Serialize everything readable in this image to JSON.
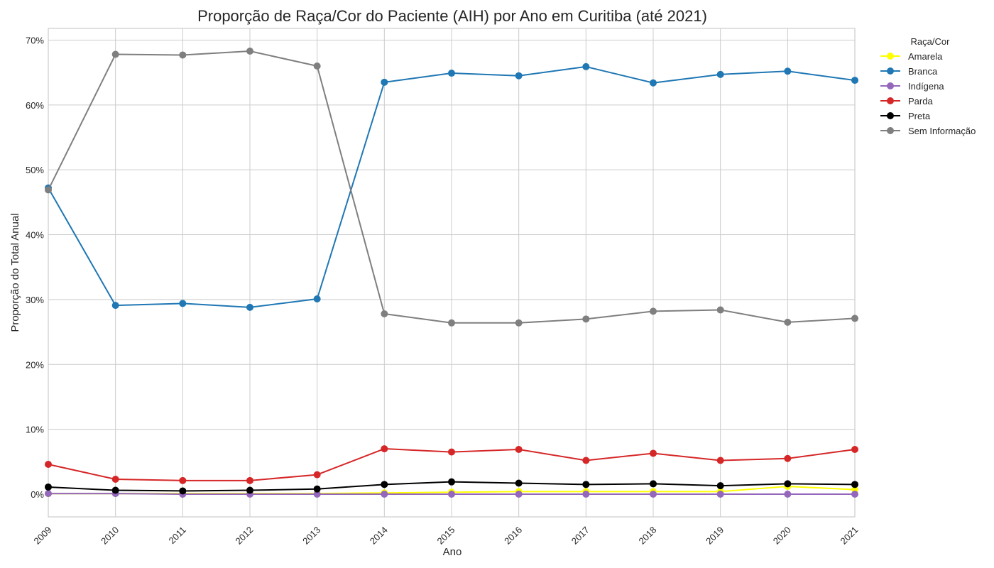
{
  "chart_data": {
    "type": "line",
    "title": "Proporção de Raça/Cor do Paciente (AIH) por Ano em Curitiba (até 2021)",
    "xlabel": "Ano",
    "ylabel": "Proporção do Total Anual",
    "x": [
      "2009",
      "2010",
      "2011",
      "2012",
      "2013",
      "2014",
      "2015",
      "2016",
      "2017",
      "2018",
      "2019",
      "2020",
      "2021"
    ],
    "y_ticks": [
      "0%",
      "10%",
      "20%",
      "30%",
      "40%",
      "50%",
      "60%",
      "70%"
    ],
    "ylim": [
      -3.5,
      71.8
    ],
    "grid": true,
    "legend": {
      "title": "Raça/Cor",
      "placement": "outside-top-right"
    },
    "series": [
      {
        "name": "Amarela",
        "color": "#ffff00",
        "values": [
          0.1,
          0.1,
          0.1,
          0.1,
          0.1,
          0.2,
          0.3,
          0.4,
          0.4,
          0.4,
          0.4,
          1.2,
          0.7
        ]
      },
      {
        "name": "Branca",
        "color": "#1f77b4",
        "values": [
          47.2,
          29.1,
          29.4,
          28.8,
          30.1,
          63.5,
          64.9,
          64.5,
          65.9,
          63.4,
          64.7,
          65.2,
          63.8
        ]
      },
      {
        "name": "Indígena",
        "color": "#9467bd",
        "values": [
          0.1,
          0.1,
          0.0,
          0.0,
          0.0,
          0.0,
          0.0,
          0.0,
          0.0,
          0.0,
          0.0,
          0.0,
          0.0
        ]
      },
      {
        "name": "Parda",
        "color": "#d62728",
        "values": [
          4.6,
          2.3,
          2.1,
          2.1,
          3.0,
          7.0,
          6.5,
          6.9,
          5.2,
          6.3,
          5.2,
          5.5,
          6.9
        ]
      },
      {
        "name": "Preta",
        "color": "#000000",
        "values": [
          1.1,
          0.6,
          0.5,
          0.6,
          0.8,
          1.5,
          1.9,
          1.7,
          1.5,
          1.6,
          1.3,
          1.6,
          1.5
        ]
      },
      {
        "name": "Sem Informação",
        "color": "#7f7f7f",
        "values": [
          46.9,
          67.8,
          67.7,
          68.3,
          66.0,
          27.8,
          26.4,
          26.4,
          27.0,
          28.2,
          28.4,
          26.5,
          27.1
        ]
      }
    ]
  }
}
